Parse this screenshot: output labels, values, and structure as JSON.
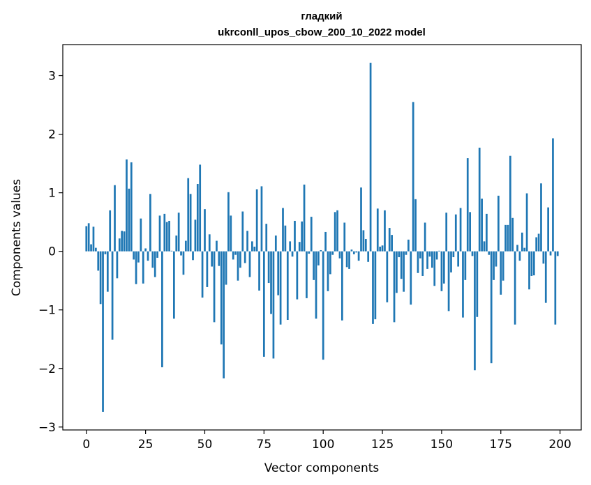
{
  "chart_data": {
    "type": "bar",
    "title_line1": "гладкий",
    "title_line2": "ukrconll_upos_cbow_200_10_2022 model",
    "xlabel": "Vector components",
    "ylabel": "Components values",
    "xlim": [
      -9.95,
      208.95
    ],
    "ylim": [
      -3.05,
      3.53
    ],
    "xticks": [
      0,
      25,
      50,
      75,
      100,
      125,
      150,
      175,
      200
    ],
    "xtick_labels": [
      "0",
      "25",
      "50",
      "75",
      "100",
      "125",
      "150",
      "175",
      "200"
    ],
    "yticks": [
      -3,
      -2,
      -1,
      0,
      1,
      2,
      3
    ],
    "ytick_labels": [
      "−3",
      "−2",
      "−1",
      "0",
      "1",
      "2",
      "3"
    ],
    "grid": false,
    "bar_color": "#1f77b4",
    "values": [
      0.43,
      0.48,
      0.12,
      0.42,
      0.06,
      -0.33,
      -0.9,
      -2.74,
      -0.05,
      -0.69,
      0.7,
      -1.51,
      1.13,
      -0.46,
      0.22,
      0.35,
      0.34,
      1.57,
      1.07,
      1.52,
      -0.14,
      -0.56,
      -0.19,
      0.56,
      -0.55,
      0.05,
      -0.16,
      0.98,
      -0.28,
      -0.44,
      -0.11,
      0.61,
      -1.98,
      0.64,
      0.5,
      0.52,
      0.01,
      -1.15,
      0.27,
      0.66,
      -0.07,
      -0.4,
      0.18,
      1.25,
      0.98,
      -0.15,
      0.54,
      1.15,
      1.48,
      -0.79,
      0.72,
      -0.61,
      0.29,
      -0.26,
      -1.21,
      0.18,
      -0.25,
      -1.59,
      -2.17,
      -0.57,
      1.01,
      0.61,
      -0.14,
      -0.06,
      -0.5,
      -0.28,
      0.68,
      -0.2,
      0.35,
      -0.44,
      0.17,
      0.08,
      1.06,
      -0.67,
      1.11,
      -1.8,
      0.47,
      -0.54,
      -1.07,
      -1.83,
      0.27,
      -0.75,
      -1.25,
      0.74,
      0.44,
      -1.17,
      0.17,
      -0.09,
      0.52,
      -0.82,
      0.16,
      0.51,
      1.14,
      -0.8,
      -0.04,
      0.59,
      -0.49,
      -1.15,
      -0.24,
      0.02,
      -1.85,
      0.33,
      -0.68,
      -0.39,
      -0.06,
      0.67,
      0.7,
      -0.12,
      -1.18,
      0.49,
      -0.27,
      -0.3,
      0.03,
      -0.05,
      -0.02,
      -0.16,
      1.09,
      0.36,
      0.21,
      -0.18,
      3.22,
      -1.24,
      -1.16,
      0.73,
      0.08,
      0.1,
      0.7,
      -0.87,
      0.4,
      0.28,
      -1.21,
      -0.71,
      -0.1,
      -0.47,
      -0.69,
      -0.06,
      0.2,
      -0.91,
      2.55,
      0.89,
      -0.37,
      -0.12,
      -0.42,
      0.49,
      -0.3,
      -0.09,
      -0.28,
      -0.59,
      -0.14,
      0.01,
      -0.68,
      -0.55,
      0.66,
      -1.02,
      -0.36,
      -0.1,
      0.63,
      -0.26,
      0.74,
      -1.13,
      -0.49,
      1.59,
      0.67,
      -0.08,
      -2.03,
      -1.12,
      1.77,
      0.9,
      0.17,
      0.64,
      -0.06,
      -1.91,
      -0.49,
      -0.26,
      0.95,
      -0.74,
      -0.5,
      0.45,
      0.45,
      1.63,
      0.57,
      -1.25,
      0.11,
      -0.16,
      0.32,
      0.06,
      0.99,
      -0.65,
      -0.42,
      -0.41,
      0.24,
      0.3,
      1.16,
      -0.21,
      -0.88,
      0.75,
      -0.07,
      1.93,
      -1.25,
      -0.08
    ]
  }
}
